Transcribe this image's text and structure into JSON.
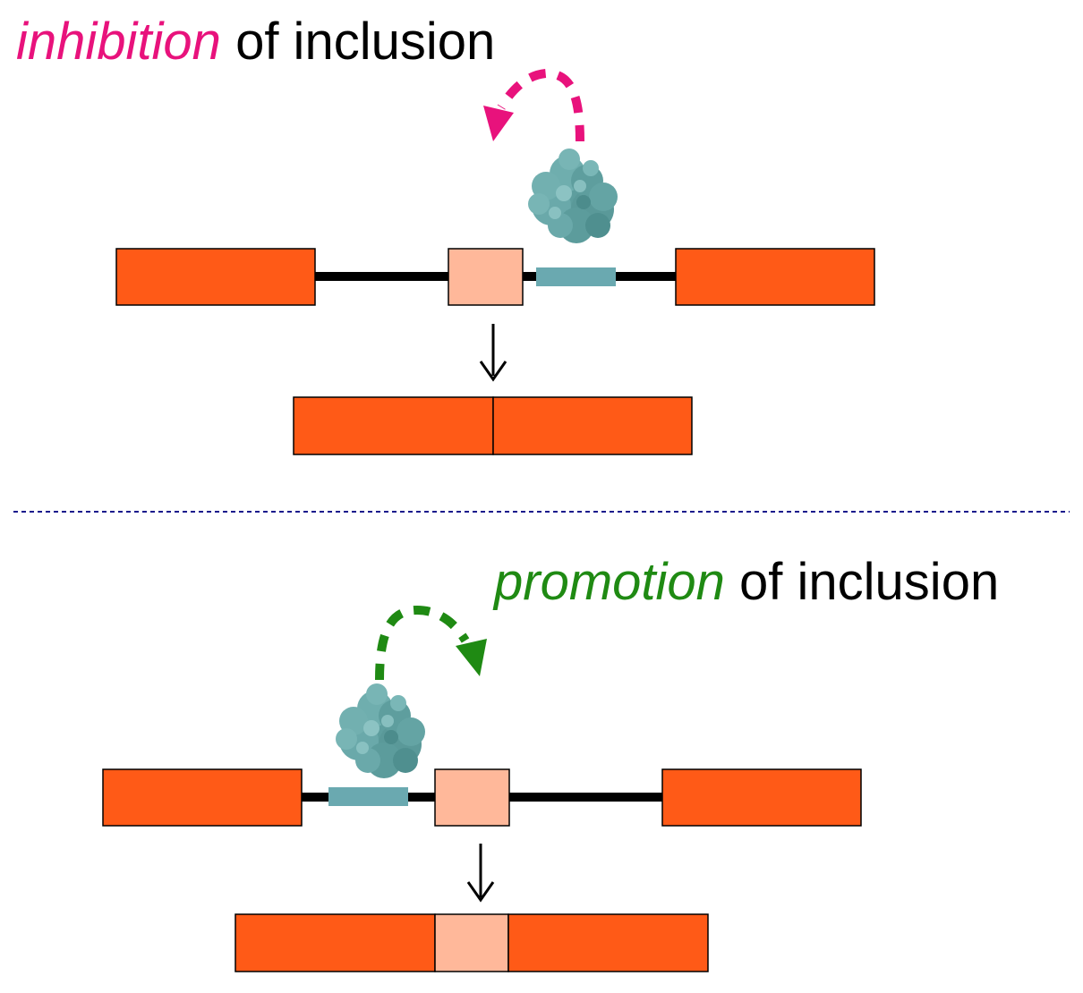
{
  "panels": {
    "top": {
      "title_keyword": "inhibition",
      "title_rest": " of inclusion",
      "keyword_color": "#e8127c"
    },
    "bottom": {
      "title_keyword": "promotion",
      "title_rest": " of inclusion",
      "keyword_color": "#1f8a13"
    }
  },
  "colors": {
    "exon": "#ff5a17",
    "alt_exon": "#ffb89a",
    "binding_site": "#6aa9b0",
    "protein": "#5e9e9e",
    "intron": "#000000",
    "divider": "#1a1a8c"
  },
  "icons": {
    "protein": "rna-binding-protein-icon",
    "arrow": "down-arrow-icon"
  }
}
